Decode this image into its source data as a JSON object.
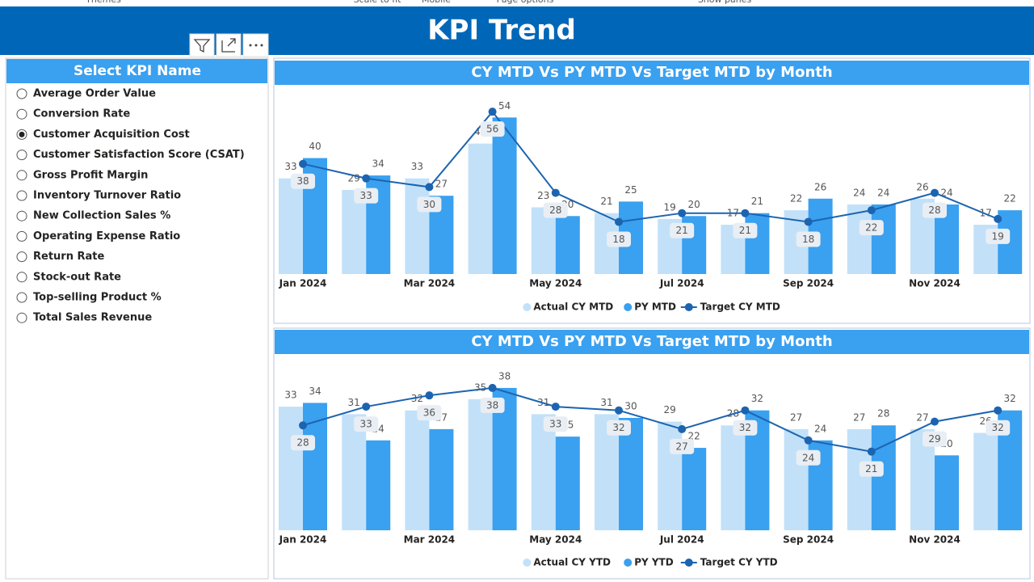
{
  "menu": [
    "Themes",
    "Scale to fit",
    "Mobile",
    "Page options",
    "Show panes"
  ],
  "header": {
    "title": "KPI Trend"
  },
  "slicer": {
    "title": "Select KPI Name",
    "items": [
      "Average Order Value",
      "Conversion Rate",
      "Customer Acquisition Cost",
      "Customer Satisfaction Score (CSAT)",
      "Gross Profit Margin",
      "Inventory Turnover Ratio",
      "New Collection Sales %",
      "Operating Expense Ratio",
      "Return Rate",
      "Stock-out Rate",
      "Top-selling Product %",
      "Total Sales Revenue"
    ],
    "selected_index": 2
  },
  "chart_data": [
    {
      "type": "bar",
      "title": "CY MTD Vs PY MTD Vs Target MTD by Month",
      "categories": [
        "Jan 2024",
        null,
        "Mar 2024",
        null,
        "May 2024",
        null,
        "Jul 2024",
        null,
        "Sep 2024",
        null,
        "Nov 2024",
        null
      ],
      "ylim": [
        0,
        58
      ],
      "series": [
        {
          "name": "Actual CY MTD",
          "color": "#c2e1f9",
          "type": "bar",
          "values": [
            33,
            29,
            33,
            45,
            23,
            21,
            19,
            17,
            22,
            24,
            26,
            17
          ]
        },
        {
          "name": "PY MTD",
          "color": "#3aa0f0",
          "type": "bar",
          "values": [
            40,
            34,
            27,
            54,
            20,
            25,
            20,
            21,
            26,
            24,
            24,
            22
          ]
        },
        {
          "name": "Target CY MTD",
          "color": "#1c64b0",
          "type": "line",
          "values": [
            38,
            33,
            30,
            56,
            28,
            18,
            21,
            21,
            18,
            22,
            28,
            19
          ]
        }
      ]
    },
    {
      "type": "bar",
      "title": "CY MTD Vs PY MTD Vs Target MTD by Month",
      "categories": [
        "Jan 2024",
        null,
        "Mar 2024",
        null,
        "May 2024",
        null,
        "Jul 2024",
        null,
        "Sep 2024",
        null,
        "Nov 2024",
        null
      ],
      "ylim": [
        0,
        41
      ],
      "series": [
        {
          "name": "Actual CY YTD",
          "color": "#c2e1f9",
          "type": "bar",
          "values": [
            33,
            31,
            32,
            35,
            31,
            31,
            29,
            28,
            27,
            27,
            27,
            26
          ]
        },
        {
          "name": "PY YTD",
          "color": "#3aa0f0",
          "type": "bar",
          "values": [
            34,
            24,
            27,
            38,
            25,
            30,
            22,
            32,
            24,
            28,
            20,
            32
          ]
        },
        {
          "name": "Target CY YTD",
          "color": "#1c64b0",
          "type": "line",
          "values": [
            28,
            33,
            36,
            38,
            33,
            32,
            27,
            32,
            24,
            21,
            29,
            32
          ]
        }
      ]
    }
  ]
}
